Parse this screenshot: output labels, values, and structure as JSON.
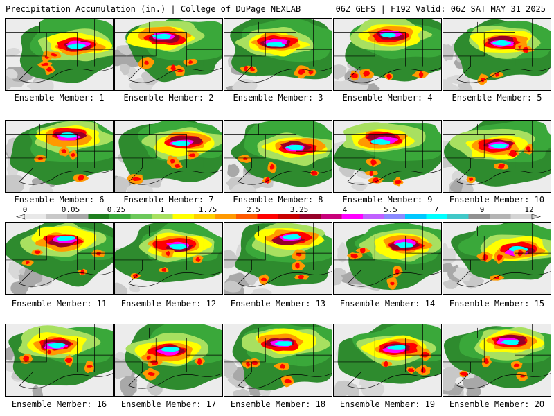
{
  "header": {
    "left": "Precipitation Accumulation (in.) | College of DuPage NEXLAB",
    "right": "06Z GEFS | F192 Valid: 06Z SAT MAY 31 2025"
  },
  "members": [
    "Ensemble Member: 1",
    "Ensemble Member: 2",
    "Ensemble Member: 3",
    "Ensemble Member: 4",
    "Ensemble Member: 5",
    "Ensemble Member: 6",
    "Ensemble Member: 7",
    "Ensemble Member: 8",
    "Ensemble Member: 9",
    "Ensemble Member: 10",
    "Ensemble Member: 11",
    "Ensemble Member: 12",
    "Ensemble Member: 13",
    "Ensemble Member: 14",
    "Ensemble Member: 15",
    "Ensemble Member: 16",
    "Ensemble Member: 17",
    "Ensemble Member: 18",
    "Ensemble Member: 19",
    "Ensemble Member: 20"
  ],
  "legend": {
    "labels": [
      "0",
      "0.05",
      "0.25",
      "1",
      "1.75",
      "2.5",
      "3.25",
      "4",
      "5.5",
      "7",
      "9",
      "12"
    ],
    "colors": [
      "#e8e8e8",
      "#c8c8c8",
      "#a8a8a8",
      "#1e7e1e",
      "#3aa83a",
      "#6cc85a",
      "#a8e060",
      "#ffff00",
      "#ffd000",
      "#ff9900",
      "#ff5a00",
      "#ff0000",
      "#c80000",
      "#960028",
      "#c8007a",
      "#ff00ff",
      "#c060ff",
      "#8a8aff",
      "#00c8ff",
      "#00ffff",
      "#40c8c8",
      "#909090",
      "#b4b4b4",
      "#d4d4d4"
    ]
  }
}
